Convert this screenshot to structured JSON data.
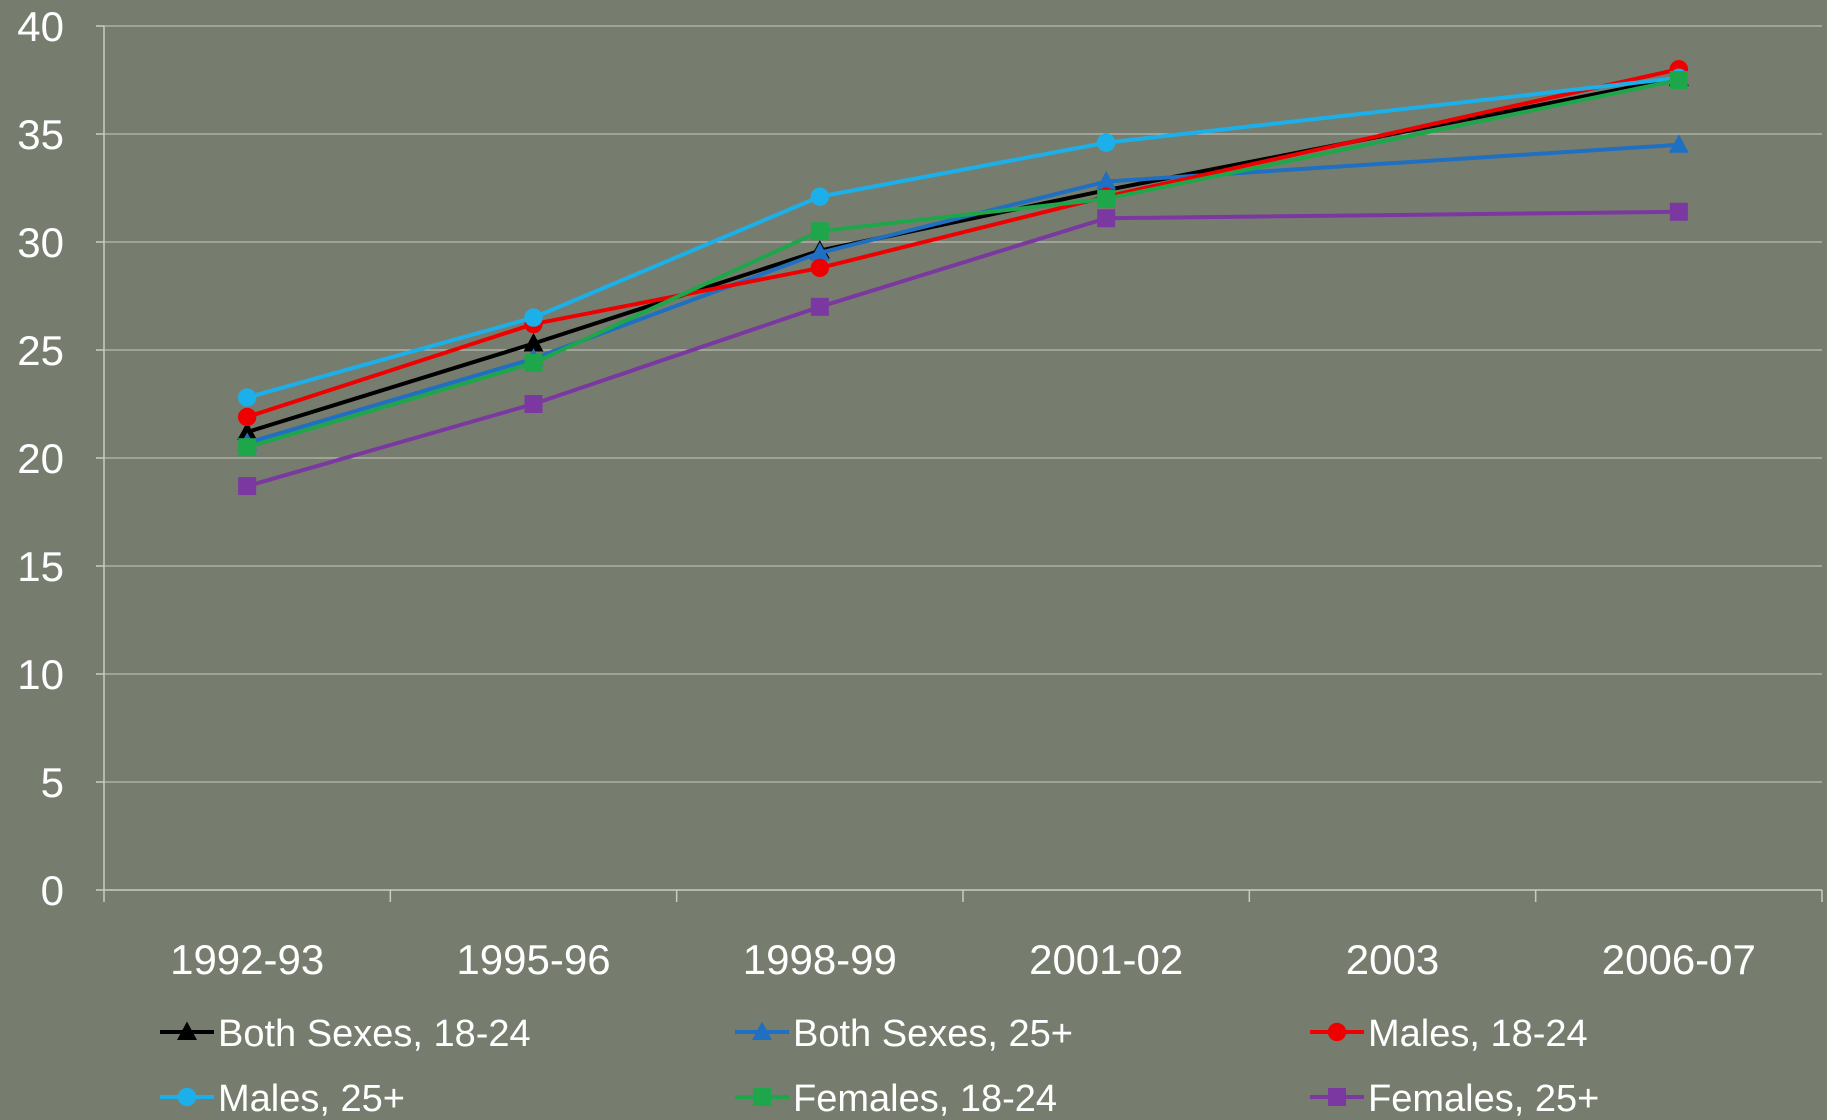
{
  "chart_data": {
    "type": "line",
    "title": "",
    "xlabel": "",
    "ylabel": "",
    "categories": [
      "1992-93",
      "1995-96",
      "1998-99",
      "2001-02",
      "2003",
      "2006-07"
    ],
    "ylim": [
      0,
      40
    ],
    "yticks": [
      0,
      5,
      10,
      15,
      20,
      25,
      30,
      35,
      40
    ],
    "grid": "horizontal",
    "legend_position": "bottom",
    "series": [
      {
        "name": "Both Sexes, 18-24",
        "color": "#000000",
        "marker": "triangle",
        "values": [
          21.2,
          25.3,
          29.6,
          32.4,
          null,
          37.6
        ]
      },
      {
        "name": "Both Sexes, 25+",
        "color": "#1f6fc2",
        "marker": "triangle",
        "values": [
          20.7,
          24.6,
          29.5,
          32.8,
          null,
          34.5
        ]
      },
      {
        "name": "Males, 18-24",
        "color": "#ee0000",
        "marker": "circle",
        "values": [
          21.9,
          26.2,
          28.8,
          32.1,
          null,
          38.0
        ]
      },
      {
        "name": "Males, 25+",
        "color": "#1bb0ea",
        "marker": "circle",
        "values": [
          22.8,
          26.5,
          32.1,
          34.6,
          null,
          37.6
        ]
      },
      {
        "name": "Females, 18-24",
        "color": "#1ea64a",
        "marker": "square",
        "values": [
          20.5,
          24.4,
          30.5,
          32.0,
          null,
          37.5
        ]
      },
      {
        "name": "Females, 25+",
        "color": "#7a38a0",
        "marker": "square",
        "values": [
          18.7,
          22.5,
          27.0,
          31.1,
          null,
          31.4
        ]
      }
    ]
  }
}
